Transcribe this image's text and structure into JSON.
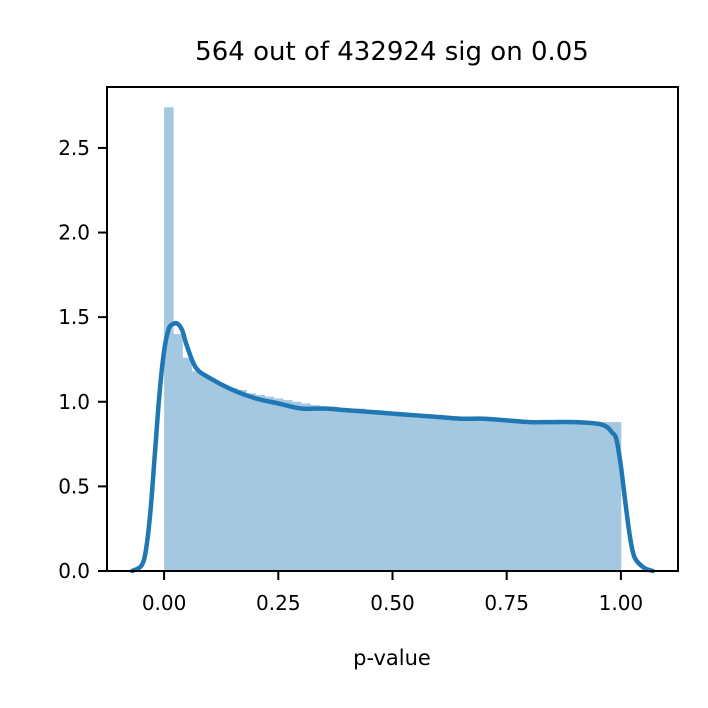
{
  "chart_data": {
    "type": "bar",
    "title": "564 out of 432924 sig on 0.05",
    "xlabel": "p-value",
    "ylabel": "",
    "xlim": [
      -0.125,
      1.125
    ],
    "ylim": [
      0,
      2.86
    ],
    "xticks": [
      0.0,
      0.25,
      0.5,
      0.75,
      1.0
    ],
    "xtick_labels": [
      "0.00",
      "0.25",
      "0.50",
      "0.75",
      "1.00"
    ],
    "yticks": [
      0.0,
      0.5,
      1.0,
      1.5,
      2.0,
      2.5
    ],
    "ytick_labels": [
      "0.0",
      "0.5",
      "1.0",
      "1.5",
      "2.0",
      "2.5"
    ],
    "grid": false,
    "histogram": {
      "bin_width": 0.02,
      "color": "#a3c8e0",
      "heights": [
        2.74,
        1.4,
        1.26,
        1.18,
        1.15,
        1.12,
        1.1,
        1.08,
        1.07,
        1.05,
        1.04,
        1.03,
        1.02,
        1.01,
        1.0,
        0.99,
        0.98,
        0.97,
        0.97,
        0.96,
        0.96,
        0.96,
        0.95,
        0.95,
        0.94,
        0.94,
        0.93,
        0.93,
        0.92,
        0.92,
        0.91,
        0.91,
        0.91,
        0.9,
        0.9,
        0.9,
        0.9,
        0.89,
        0.89,
        0.89,
        0.88,
        0.88,
        0.88,
        0.87,
        0.87,
        0.88,
        0.88,
        0.88,
        0.88,
        0.88
      ]
    },
    "kde": {
      "color": "#1f77b4",
      "x": [
        -0.07,
        -0.05,
        -0.04,
        -0.03,
        -0.02,
        -0.01,
        0.0,
        0.01,
        0.02,
        0.03,
        0.04,
        0.05,
        0.07,
        0.1,
        0.15,
        0.2,
        0.25,
        0.3,
        0.35,
        0.4,
        0.45,
        0.5,
        0.55,
        0.6,
        0.65,
        0.7,
        0.75,
        0.8,
        0.85,
        0.9,
        0.95,
        0.97,
        0.98,
        0.99,
        1.0,
        1.01,
        1.02,
        1.03,
        1.05,
        1.07
      ],
      "y": [
        0.0,
        0.03,
        0.12,
        0.35,
        0.7,
        1.05,
        1.3,
        1.43,
        1.46,
        1.46,
        1.42,
        1.33,
        1.2,
        1.14,
        1.07,
        1.02,
        0.99,
        0.96,
        0.96,
        0.95,
        0.94,
        0.93,
        0.92,
        0.91,
        0.9,
        0.9,
        0.89,
        0.88,
        0.88,
        0.88,
        0.87,
        0.85,
        0.82,
        0.78,
        0.62,
        0.4,
        0.2,
        0.08,
        0.02,
        0.0
      ]
    }
  }
}
